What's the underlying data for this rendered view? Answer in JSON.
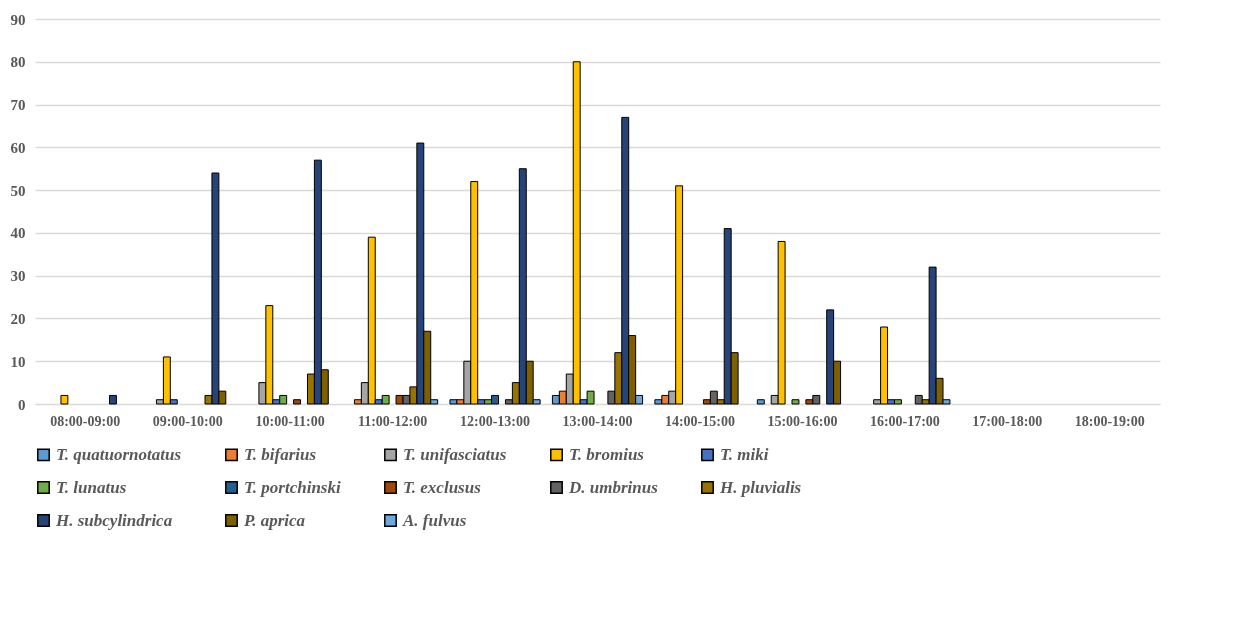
{
  "chart_data": {
    "type": "bar",
    "categories": [
      "08:00-09:00",
      "09:00-10:00",
      "10:00-11:00",
      "11:00-12:00",
      "12:00-13:00",
      "13:00-14:00",
      "14:00-15:00",
      "15:00-16:00",
      "16:00-17:00",
      "17:00-18:00",
      "18:00-19:00"
    ],
    "series": [
      {
        "name": "T. quatuornotatus",
        "color": "#5b9bd5",
        "values": [
          null,
          null,
          null,
          null,
          1,
          2,
          1,
          1,
          null,
          null,
          null
        ]
      },
      {
        "name": "T. bifarius",
        "color": "#ed7d31",
        "values": [
          null,
          null,
          null,
          1,
          1,
          3,
          2,
          null,
          null,
          null,
          null
        ]
      },
      {
        "name": "T. unifasciatus",
        "color": "#a5a5a5",
        "values": [
          null,
          1,
          5,
          5,
          10,
          7,
          3,
          2,
          1,
          null,
          null
        ]
      },
      {
        "name": "T. bromius",
        "color": "#ffc000",
        "values": [
          2,
          11,
          23,
          39,
          52,
          80,
          51,
          38,
          18,
          null,
          null
        ]
      },
      {
        "name": "T. miki",
        "color": "#4472c4",
        "values": [
          null,
          1,
          1,
          1,
          1,
          1,
          null,
          null,
          1,
          null,
          null
        ]
      },
      {
        "name": "T. lunatus",
        "color": "#70ad47",
        "values": [
          null,
          null,
          2,
          2,
          1,
          3,
          null,
          1,
          1,
          null,
          null
        ]
      },
      {
        "name": "T. portchinski",
        "color": "#255e91",
        "values": [
          null,
          null,
          null,
          null,
          2,
          null,
          null,
          null,
          null,
          null,
          null
        ]
      },
      {
        "name": "T. exclusus",
        "color": "#9e480e",
        "values": [
          null,
          null,
          1,
          2,
          null,
          null,
          1,
          1,
          null,
          null,
          null
        ]
      },
      {
        "name": "D. umbrinus",
        "color": "#636363",
        "values": [
          null,
          null,
          null,
          2,
          1,
          3,
          3,
          2,
          2,
          null,
          null
        ]
      },
      {
        "name": "H. pluvialis",
        "color": "#997300",
        "values": [
          null,
          2,
          7,
          4,
          5,
          12,
          1,
          null,
          1,
          null,
          null
        ]
      },
      {
        "name": "H. subcylindrica",
        "color": "#264478",
        "values": [
          2,
          54,
          57,
          61,
          55,
          67,
          41,
          22,
          32,
          null,
          null
        ]
      },
      {
        "name": "P. aprica",
        "color": "#7f6000",
        "values": [
          null,
          3,
          8,
          17,
          10,
          16,
          12,
          10,
          6,
          null,
          null
        ]
      },
      {
        "name": "A. fulvus",
        "color": "#6fa8dc",
        "values": [
          null,
          null,
          null,
          1,
          1,
          2,
          null,
          null,
          1,
          null,
          null
        ]
      }
    ],
    "ylim": [
      0,
      90
    ],
    "yticks": [
      0,
      10,
      20,
      30,
      40,
      50,
      60,
      70,
      80,
      90
    ],
    "grid": "y",
    "legend": "bottom"
  }
}
